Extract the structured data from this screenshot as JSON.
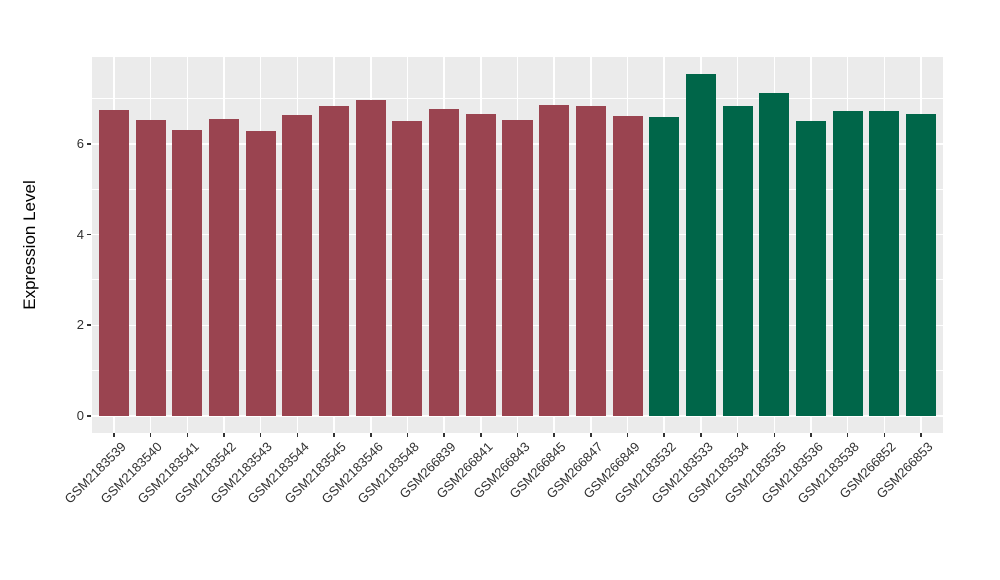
{
  "chart_data": {
    "type": "bar",
    "title": "",
    "xlabel": "",
    "ylabel": "Expression Level",
    "yticks": [
      0,
      2,
      4,
      6
    ],
    "ylim": [
      0,
      7.93
    ],
    "grid": true,
    "legend": "none",
    "categories": [
      "GSM2183539",
      "GSM2183540",
      "GSM2183541",
      "GSM2183542",
      "GSM2183543",
      "GSM2183544",
      "GSM2183545",
      "GSM2183546",
      "GSM2183548",
      "GSM266839",
      "GSM266841",
      "GSM266843",
      "GSM266845",
      "GSM266847",
      "GSM266849",
      "GSM2183532",
      "GSM2183533",
      "GSM2183534",
      "GSM2183535",
      "GSM2183536",
      "GSM2183538",
      "GSM266852",
      "GSM266853"
    ],
    "values": [
      6.75,
      6.53,
      6.31,
      6.55,
      6.29,
      6.64,
      6.83,
      6.96,
      6.51,
      6.77,
      6.67,
      6.53,
      6.85,
      6.83,
      6.62,
      6.6,
      7.55,
      6.83,
      7.12,
      6.5,
      6.72,
      6.73,
      6.67
    ],
    "bar_colors": [
      "#9A4450",
      "#9A4450",
      "#9A4450",
      "#9A4450",
      "#9A4450",
      "#9A4450",
      "#9A4450",
      "#9A4450",
      "#9A4450",
      "#9A4450",
      "#9A4450",
      "#9A4450",
      "#9A4450",
      "#9A4450",
      "#9A4450",
      "#006649",
      "#006649",
      "#006649",
      "#006649",
      "#006649",
      "#006649",
      "#006649",
      "#006649"
    ],
    "group_colors": {
      "left_group": "#9A4450",
      "right_group": "#006649"
    }
  },
  "styles": {
    "background": "#FFFFFF",
    "panel_background": "#EBEBEB",
    "grid_color": "#FFFFFF",
    "tick_color": "#333333",
    "text_color": "#303030"
  }
}
